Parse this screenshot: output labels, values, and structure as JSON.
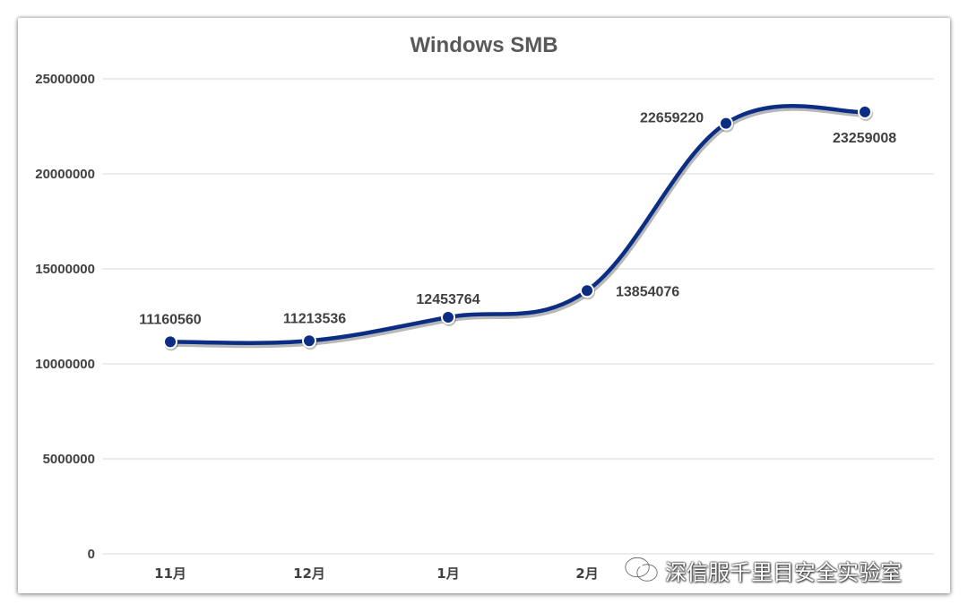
{
  "chart_data": {
    "type": "line",
    "title": "Windows SMB",
    "categories": [
      "11月",
      "12月",
      "1月",
      "2月",
      "",
      ""
    ],
    "series": [
      {
        "values": [
          11160560,
          11213536,
          12453764,
          13854076,
          22659220,
          23259008
        ],
        "data_labels": [
          "11160560",
          "11213536",
          "12453764",
          "13854076",
          "22659220",
          "23259008"
        ]
      }
    ],
    "ylim": [
      0,
      25000000
    ],
    "yticks": [
      0,
      5000000,
      10000000,
      15000000,
      20000000,
      25000000
    ],
    "ytick_labels": [
      "0",
      "5000000",
      "10000000",
      "15000000",
      "20000000",
      "25000000"
    ],
    "grid": true,
    "legend": "none",
    "colors": {
      "line": "#0b2d84",
      "marker": "#0b2d84",
      "grid": "#d9d9d9",
      "text": "#404040",
      "title": "#595959"
    }
  },
  "watermark": {
    "text": "深信服千里目安全实验室",
    "icon": "wechat-icon"
  }
}
